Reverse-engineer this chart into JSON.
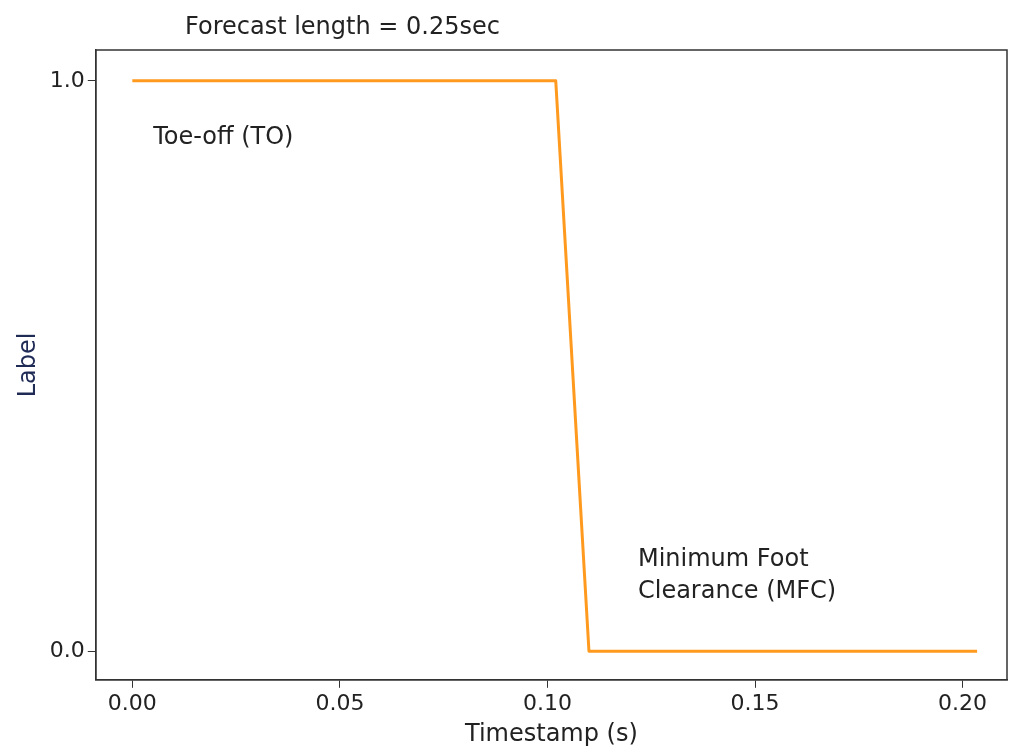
{
  "chart_data": {
    "type": "line",
    "title": "Forecast length = 0.25sec",
    "xlabel": "Timestamp (s)",
    "ylabel": "Label",
    "series": [
      {
        "color": "#ff9a1f",
        "x": [
          0.0,
          0.102,
          0.11,
          0.2035
        ],
        "values": [
          1,
          1,
          0,
          0
        ]
      }
    ],
    "xlim": [
      -0.0088,
      0.2107
    ],
    "ylim": [
      -0.05,
      1.054
    ],
    "xticks": [
      {
        "value": 0,
        "label": "0.00"
      },
      {
        "value": 0.05,
        "label": "0.05"
      },
      {
        "value": 0.1,
        "label": "0.10"
      },
      {
        "value": 0.15,
        "label": "0.15"
      },
      {
        "value": 0.2,
        "label": "0.20"
      }
    ],
    "yticks": [
      {
        "value": 0,
        "label": "0.0"
      },
      {
        "value": 1,
        "label": "1.0"
      }
    ],
    "annotations": [
      "Toe-off (TO)",
      "Minimum Foot Clearance (MFC)"
    ],
    "grid": false,
    "legend": false,
    "marker": "none",
    "line_style": "solid"
  }
}
